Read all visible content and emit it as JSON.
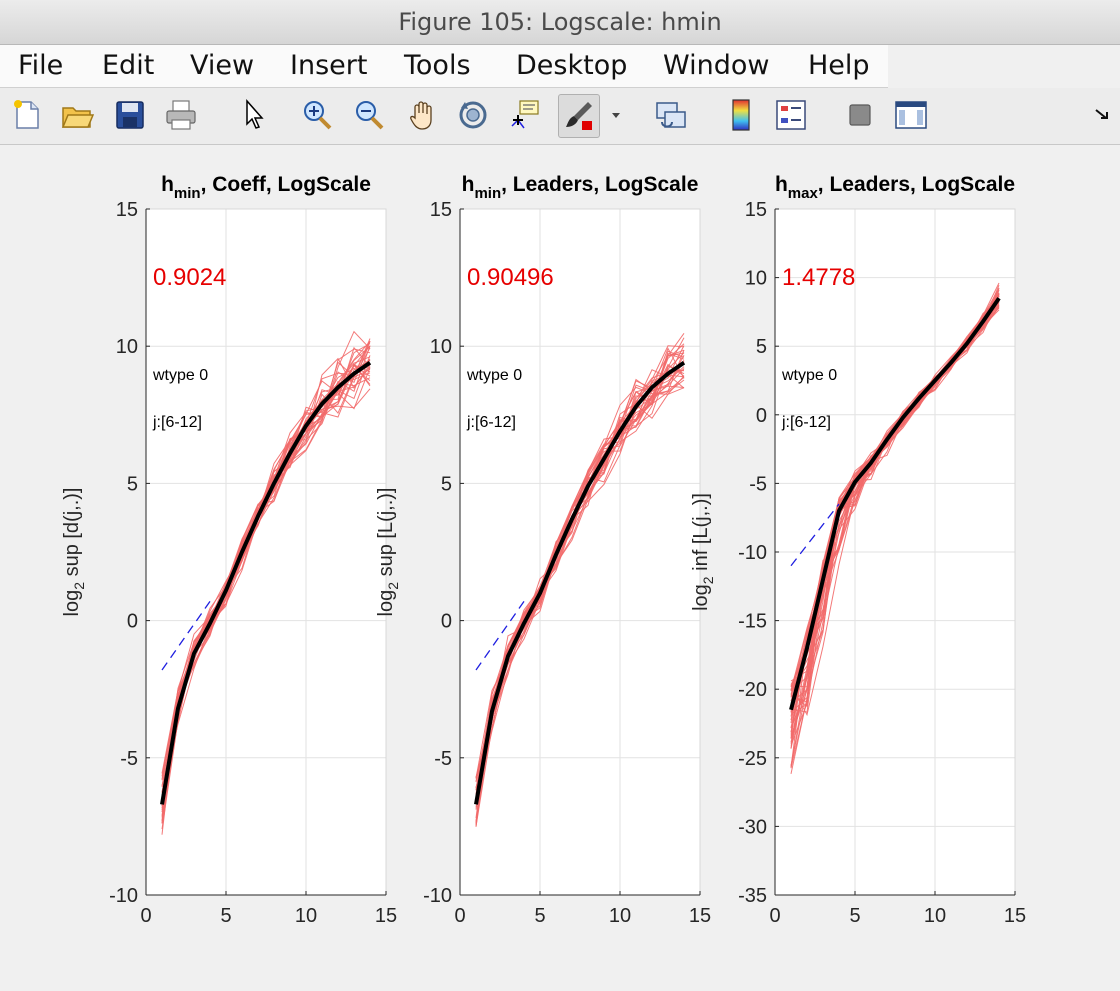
{
  "window": {
    "title": "Figure 105: Logscale: hmin"
  },
  "menu": [
    "File",
    "Edit",
    "View",
    "Insert",
    "Tools",
    "Desktop",
    "Window",
    "Help"
  ],
  "toolbar": {
    "icons": [
      "new-figure-icon",
      "open-file-icon",
      "save-icon",
      "print-icon",
      "pointer-icon",
      "zoom-in-icon",
      "zoom-out-icon",
      "pan-hand-icon",
      "rotate-3d-icon",
      "data-cursor-icon",
      "brush-icon",
      "brush-dropdown-icon",
      "link-plot-icon",
      "colorbar-icon",
      "legend-icon",
      "hide-plot-tools-icon",
      "show-plot-tools-icon",
      "dock-arrow-icon"
    ]
  },
  "colors": {
    "traces": "#f26a6a",
    "mean": "#000000",
    "fit": "#1f1fe0",
    "value_text": "#e60000"
  },
  "chart_data": [
    {
      "type": "line",
      "title_main": "h",
      "title_sub": "min",
      "title_rest": ", Coeff, LogScale",
      "ylabel_pre": "log",
      "ylabel_sub": "2",
      "ylabel_post": " sup [d(j,.)]",
      "xlim": [
        0,
        15
      ],
      "ylim": [
        -10,
        15
      ],
      "xticks": [
        0,
        5,
        10,
        15
      ],
      "yticks": [
        -10,
        -5,
        0,
        5,
        10,
        15
      ],
      "grid": true,
      "value_label": "0.9024",
      "annotation1": "wtype 0",
      "annotation2": "j:[6-12]",
      "x": [
        1,
        2,
        3,
        4,
        5,
        6,
        7,
        8,
        9,
        10,
        11,
        12,
        13,
        14
      ],
      "mean": [
        -6.7,
        -3.2,
        -1.2,
        -0.1,
        1.1,
        2.5,
        3.8,
        5.0,
        6.1,
        7.1,
        7.9,
        8.5,
        9.0,
        9.4
      ],
      "fit": {
        "x": [
          1,
          4
        ],
        "y": [
          -1.8,
          0.7
        ]
      },
      "spread_lo": [
        1.6,
        1.3,
        0.9,
        0.8,
        0.8,
        0.8,
        0.9,
        1.0,
        1.1,
        1.2,
        1.3,
        1.4,
        1.5,
        1.6
      ],
      "spread_hi": [
        1.5,
        1.0,
        0.8,
        0.7,
        0.7,
        0.7,
        0.8,
        0.9,
        1.0,
        1.2,
        1.3,
        1.5,
        1.6,
        1.5
      ],
      "n_traces": 30
    },
    {
      "type": "line",
      "title_main": "h",
      "title_sub": "min",
      "title_rest": ", Leaders, LogScale",
      "ylabel_pre": "log",
      "ylabel_sub": "2",
      "ylabel_post": " sup [L(j,.)]",
      "xlim": [
        0,
        15
      ],
      "ylim": [
        -10,
        15
      ],
      "xticks": [
        0,
        5,
        10,
        15
      ],
      "yticks": [
        -10,
        -5,
        0,
        5,
        10,
        15
      ],
      "grid": true,
      "value_label": "0.90496",
      "annotation1": "wtype 0",
      "annotation2": "j:[6-12]",
      "x": [
        1,
        2,
        3,
        4,
        5,
        6,
        7,
        8,
        9,
        10,
        11,
        12,
        13,
        14
      ],
      "mean": [
        -6.7,
        -3.3,
        -1.3,
        -0.1,
        1.0,
        2.4,
        3.7,
        4.9,
        5.9,
        6.9,
        7.8,
        8.5,
        9.0,
        9.4
      ],
      "fit": {
        "x": [
          1,
          4
        ],
        "y": [
          -1.8,
          0.7
        ]
      },
      "spread_lo": [
        1.5,
        1.2,
        0.9,
        0.8,
        0.8,
        0.8,
        0.9,
        1.0,
        1.1,
        1.2,
        1.3,
        1.4,
        1.4,
        1.4
      ],
      "spread_hi": [
        1.4,
        1.0,
        0.8,
        0.7,
        0.7,
        0.7,
        0.8,
        0.9,
        1.0,
        1.2,
        1.3,
        1.5,
        1.6,
        1.5
      ],
      "n_traces": 30
    },
    {
      "type": "line",
      "title_main": "h",
      "title_sub": "max",
      "title_rest": ", Leaders, LogScale",
      "ylabel_pre": "log",
      "ylabel_sub": "2",
      "ylabel_post": " inf [L(j,.)]",
      "xlim": [
        0,
        15
      ],
      "ylim": [
        -35,
        15
      ],
      "xticks": [
        0,
        5,
        10,
        15
      ],
      "yticks": [
        -35,
        -30,
        -25,
        -20,
        -15,
        -10,
        -5,
        0,
        5,
        10,
        15
      ],
      "grid": true,
      "value_label": "1.4778",
      "annotation1": "wtype 0",
      "annotation2": "j:[6-12]",
      "x": [
        1,
        2,
        3,
        4,
        5,
        6,
        7,
        8,
        9,
        10,
        11,
        12,
        13,
        14
      ],
      "mean": [
        -21.5,
        -17.0,
        -12.0,
        -7.0,
        -4.9,
        -3.5,
        -1.8,
        -0.2,
        1.2,
        2.5,
        3.8,
        5.2,
        6.8,
        8.5
      ],
      "fit": {
        "x": [
          1,
          4
        ],
        "y": [
          -11.0,
          -6.5
        ]
      },
      "spread_lo": [
        8.0,
        7.0,
        6.5,
        6.0,
        3.0,
        1.6,
        1.3,
        1.0,
        0.9,
        0.8,
        0.8,
        0.9,
        1.0,
        1.3
      ],
      "spread_hi": [
        3.0,
        2.5,
        2.0,
        1.5,
        1.0,
        0.9,
        0.8,
        0.7,
        0.6,
        0.6,
        0.6,
        0.7,
        0.9,
        1.4
      ],
      "n_traces": 45
    }
  ]
}
